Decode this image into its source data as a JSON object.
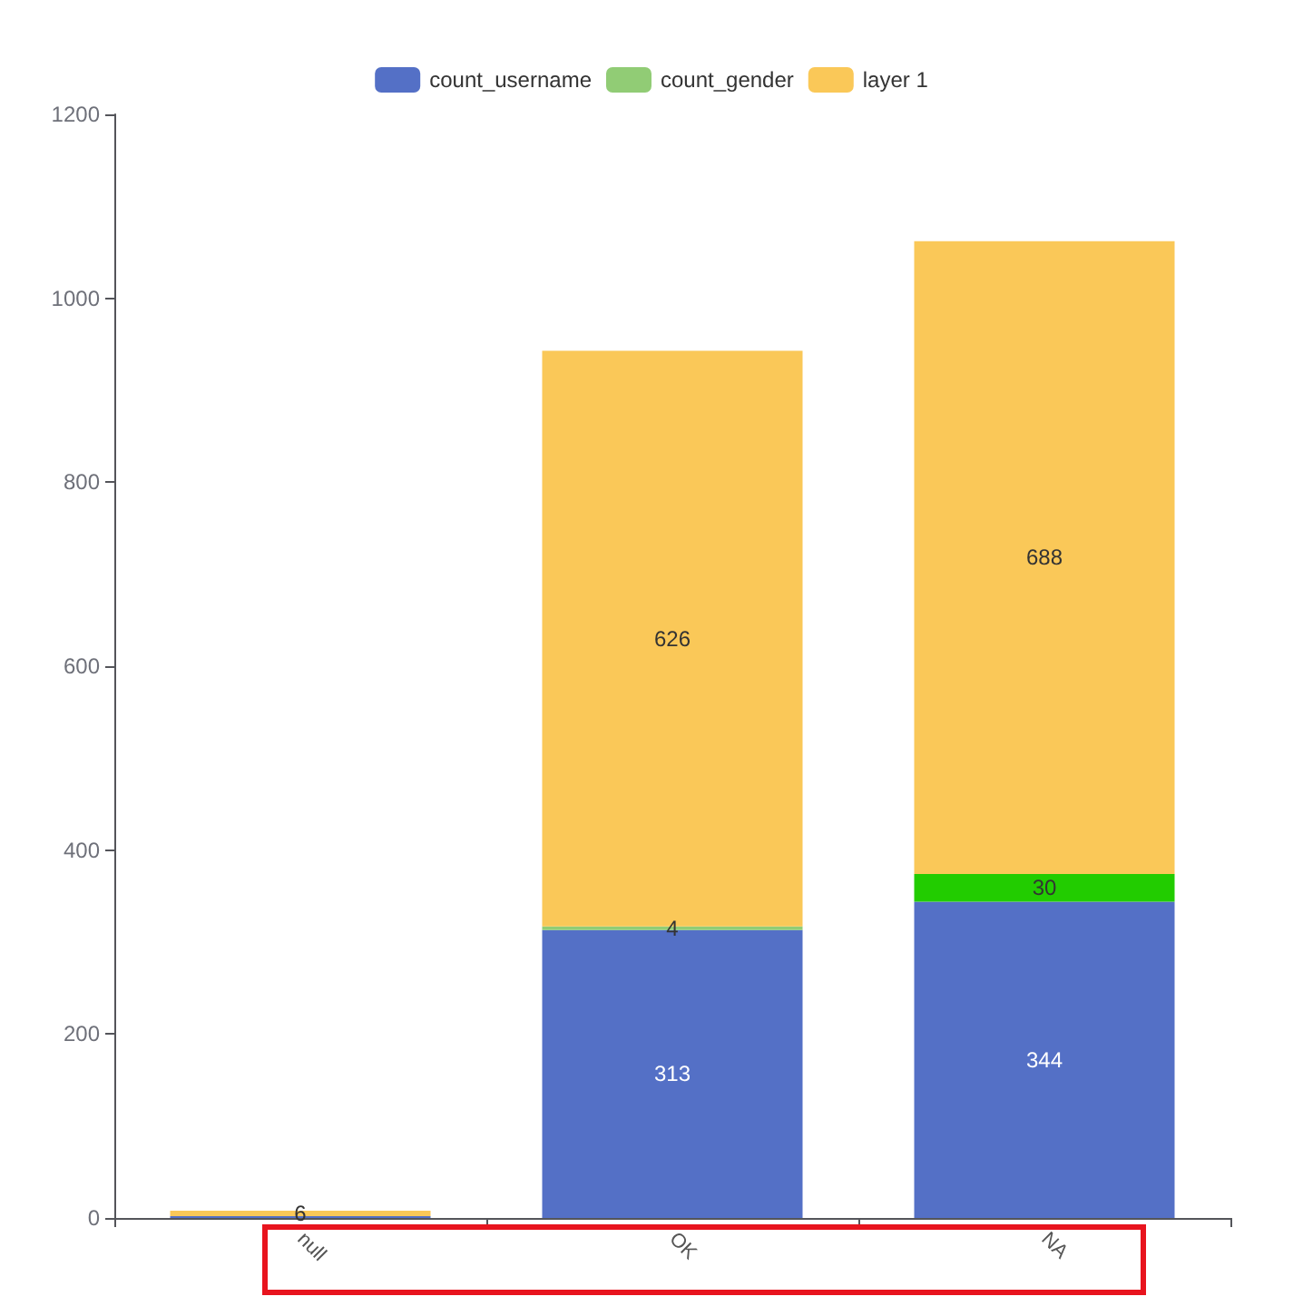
{
  "chart_data": {
    "type": "bar",
    "stacked": true,
    "categories": [
      "null",
      "OK",
      "NA"
    ],
    "series": [
      {
        "name": "count_username",
        "color": "#5470c6",
        "values": [
          2,
          313,
          344
        ],
        "value_labels": [
          null,
          "313",
          "344"
        ]
      },
      {
        "name": "count_gender",
        "color": "#91cc75",
        "colors": [
          "#91cc75",
          "#91cc75",
          "#22cc00"
        ],
        "values": [
          0,
          4,
          30
        ],
        "value_labels": [
          null,
          "4",
          "30"
        ]
      },
      {
        "name": "layer 1",
        "color": "#fac858",
        "values": [
          6,
          626,
          688
        ],
        "value_labels": [
          "6",
          "626",
          "688"
        ]
      }
    ],
    "ylim": [
      0,
      1200
    ],
    "yticks": [
      0,
      200,
      400,
      600,
      800,
      {
        "value": 1000,
        "label": "1000"
      },
      {
        "value": 1200,
        "label": "1200"
      }
    ],
    "grid": false,
    "legend": "top"
  }
}
